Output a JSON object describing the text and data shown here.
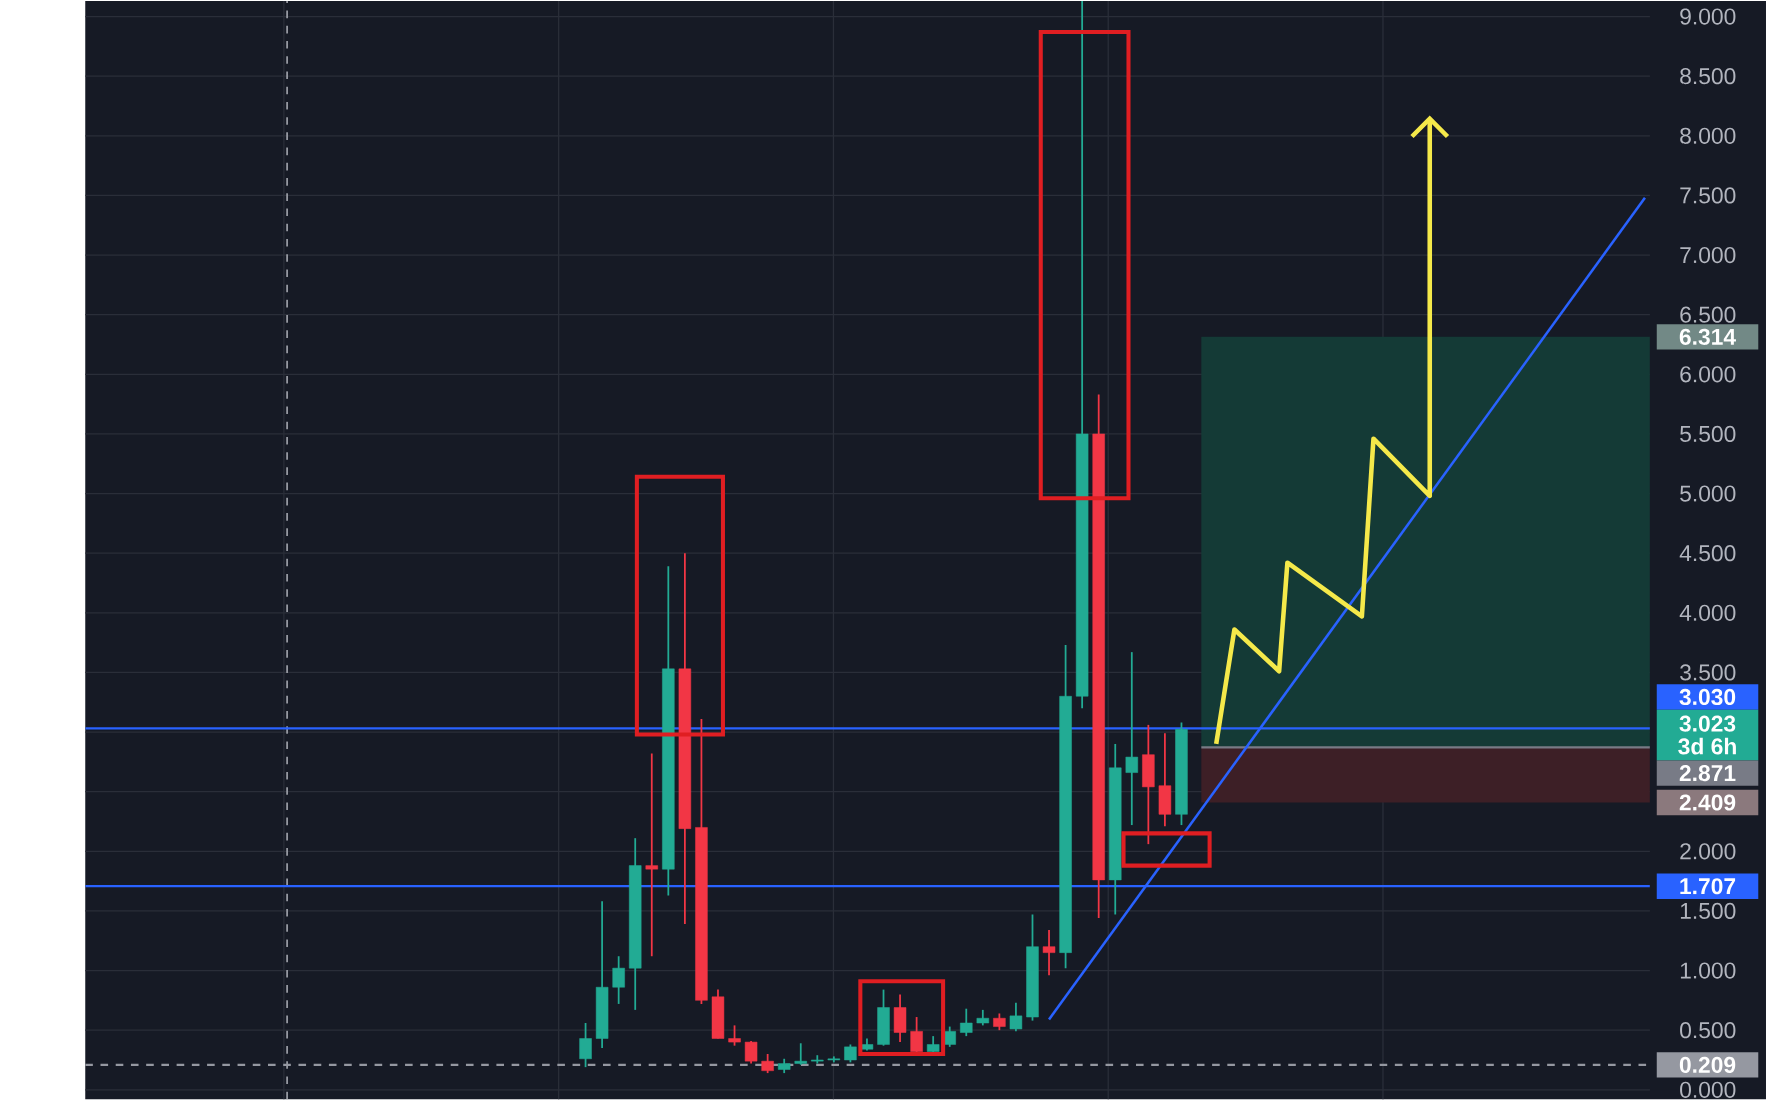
{
  "chart_data": {
    "type": "candlestick",
    "categories": [
      null,
      null,
      null,
      null,
      null,
      null,
      null,
      null,
      null,
      null,
      null,
      null,
      null,
      null,
      null,
      null,
      null,
      null,
      null,
      null,
      null,
      null,
      null,
      null,
      null,
      null,
      null,
      null,
      null,
      null,
      null,
      null,
      null,
      null,
      null,
      null,
      null,
      null,
      null,
      null,
      null,
      null,
      null,
      null,
      null,
      null,
      null,
      null,
      null,
      null,
      null,
      null,
      null,
      null,
      null,
      null,
      null,
      null,
      null,
      null,
      null,
      null,
      null,
      null,
      null
    ],
    "ohlc": [
      [
        0.26,
        0.56,
        0.19,
        0.43
      ],
      [
        0.43,
        1.58,
        0.35,
        0.86
      ],
      [
        0.86,
        1.12,
        0.72,
        1.02
      ],
      [
        1.02,
        2.11,
        0.67,
        1.88
      ],
      [
        1.88,
        2.82,
        1.12,
        1.85
      ],
      [
        1.85,
        4.39,
        1.63,
        3.53
      ],
      [
        3.53,
        4.5,
        1.39,
        2.19
      ],
      [
        2.2,
        3.11,
        0.72,
        0.75
      ],
      [
        0.78,
        0.84,
        0.43,
        0.43
      ],
      [
        0.43,
        0.54,
        0.37,
        0.4
      ],
      [
        0.4,
        0.41,
        0.22,
        0.24
      ],
      [
        0.24,
        0.3,
        0.14,
        0.16
      ],
      [
        0.17,
        0.26,
        0.14,
        0.22
      ],
      [
        0.22,
        0.39,
        0.21,
        0.24
      ],
      [
        0.24,
        0.29,
        0.22,
        0.25
      ],
      [
        0.25,
        0.28,
        0.23,
        0.26
      ],
      [
        0.25,
        0.38,
        0.23,
        0.36
      ],
      [
        0.34,
        0.43,
        0.33,
        0.38
      ],
      [
        0.38,
        0.84,
        0.37,
        0.69
      ],
      [
        0.69,
        0.8,
        0.4,
        0.48
      ],
      [
        0.49,
        0.61,
        0.31,
        0.32
      ],
      [
        0.32,
        0.45,
        0.3,
        0.38
      ],
      [
        0.38,
        0.53,
        0.36,
        0.49
      ],
      [
        0.48,
        0.68,
        0.45,
        0.56
      ],
      [
        0.56,
        0.67,
        0.54,
        0.6
      ],
      [
        0.6,
        0.64,
        0.5,
        0.53
      ],
      [
        0.51,
        0.73,
        0.49,
        0.62
      ],
      [
        0.61,
        1.47,
        0.58,
        1.2
      ],
      [
        1.2,
        1.34,
        0.96,
        1.15
      ],
      [
        1.15,
        3.73,
        1.02,
        3.3
      ],
      [
        3.3,
        9.13,
        3.2,
        5.5
      ],
      [
        5.5,
        5.83,
        1.44,
        1.76
      ],
      [
        1.76,
        2.9,
        1.47,
        2.7
      ],
      [
        2.66,
        3.67,
        2.22,
        2.79
      ],
      [
        2.81,
        3.06,
        2.06,
        2.54
      ],
      [
        2.55,
        2.99,
        2.21,
        2.31
      ],
      [
        2.31,
        3.08,
        2.22,
        3.023
      ],
      null,
      null,
      null,
      null,
      null,
      null,
      null,
      null,
      null,
      null,
      null,
      null,
      null,
      null,
      null,
      null,
      null,
      null,
      null,
      null,
      null,
      null,
      null,
      null,
      null,
      null,
      null,
      null
    ],
    "colors": [
      "#22ab94",
      "#22ab94",
      "#22ab94",
      "#22ab94",
      "#f23645",
      "#22ab94",
      "#f23645",
      "#f23645",
      "#f23645",
      "#f23645",
      "#f23645",
      "#f23645",
      "#22ab94",
      "#22ab94",
      "#22ab94",
      "#22ab94",
      "#22ab94",
      "#22ab94",
      "#22ab94",
      "#f23645",
      "#f23645",
      "#22ab94",
      "#22ab94",
      "#22ab94",
      "#22ab94",
      "#f23645",
      "#22ab94",
      "#22ab94",
      "#f23645",
      "#22ab94",
      "#22ab94",
      "#f23645",
      "#22ab94",
      "#22ab94",
      "#f23645",
      "#f23645",
      "#22ab94",
      null,
      null,
      null,
      null,
      null,
      null,
      null,
      null,
      null,
      null,
      null,
      null,
      null,
      null,
      null,
      null,
      null,
      null,
      null,
      null,
      null,
      null,
      null,
      null,
      null,
      null,
      null,
      null
    ],
    "series": [
      {
        "type": "line",
        "color": "#2962ff",
        "values": [
          null,
          null,
          null,
          null,
          null,
          null,
          null,
          null,
          null,
          null,
          null,
          null,
          null,
          null,
          null,
          null,
          null,
          null,
          null,
          null,
          null,
          null,
          null,
          null,
          null,
          null,
          null,
          null,
          0.59,
          null,
          null,
          null,
          null,
          null,
          null,
          null,
          null,
          null,
          null,
          null,
          null,
          null,
          null,
          null,
          null,
          null,
          null,
          null,
          null,
          null,
          null,
          null,
          null,
          null,
          null,
          null,
          null,
          null,
          null,
          null,
          null,
          null,
          null,
          null,
          7.48
        ]
      }
    ],
    "ylim": [
      -0.08,
      9.13
    ],
    "yticks": [
      {
        "value": 0,
        "label": "0.000"
      },
      {
        "value": 0.5,
        "label": "0.500"
      },
      {
        "value": 1,
        "label": "1.000"
      },
      {
        "value": 1.5,
        "label": "1.500"
      },
      {
        "value": 2,
        "label": "2.000"
      },
      {
        "value": 2.5,
        "label": null
      },
      {
        "value": 3,
        "label": null
      },
      {
        "value": 3.5,
        "label": "3.500"
      },
      {
        "value": 4,
        "label": "4.000"
      },
      {
        "value": 4.5,
        "label": "4.500"
      },
      {
        "value": 5,
        "label": "5.000"
      },
      {
        "value": 5.5,
        "label": "5.500"
      },
      {
        "value": 6,
        "label": "6.000"
      },
      {
        "value": 6.5,
        "label": "6.500"
      },
      {
        "value": 7,
        "label": "7.000"
      },
      {
        "value": 7.5,
        "label": "7.500"
      },
      {
        "value": 8,
        "label": "8.000"
      },
      {
        "value": 8.5,
        "label": "8.500"
      },
      {
        "value": 9,
        "label": "9.000"
      }
    ],
    "ref_lines": [
      {
        "axis": "y",
        "value": 3.03,
        "label": "3.030",
        "color": "#2962ff"
      },
      {
        "axis": "y",
        "value": 1.707,
        "label": "1.707",
        "color": "#2962ff"
      },
      {
        "axis": "y",
        "value": 0.209,
        "label": "0.209",
        "color": "#9598a1",
        "line_style": "dashed"
      },
      {
        "axis": "y",
        "value": 2.871,
        "label": "2.871",
        "color": "#787b86"
      }
    ],
    "bands": [
      {
        "axis": "y",
        "from": 2.871,
        "to": 6.314,
        "label": "6.314",
        "color": "#143a36"
      },
      {
        "axis": "y",
        "from": 2.409,
        "to": 2.871,
        "label": "2.409",
        "color": "#3d1f26"
      }
    ],
    "annotations": [
      "3.023",
      "3d 6h"
    ],
    "grid": true
  }
}
